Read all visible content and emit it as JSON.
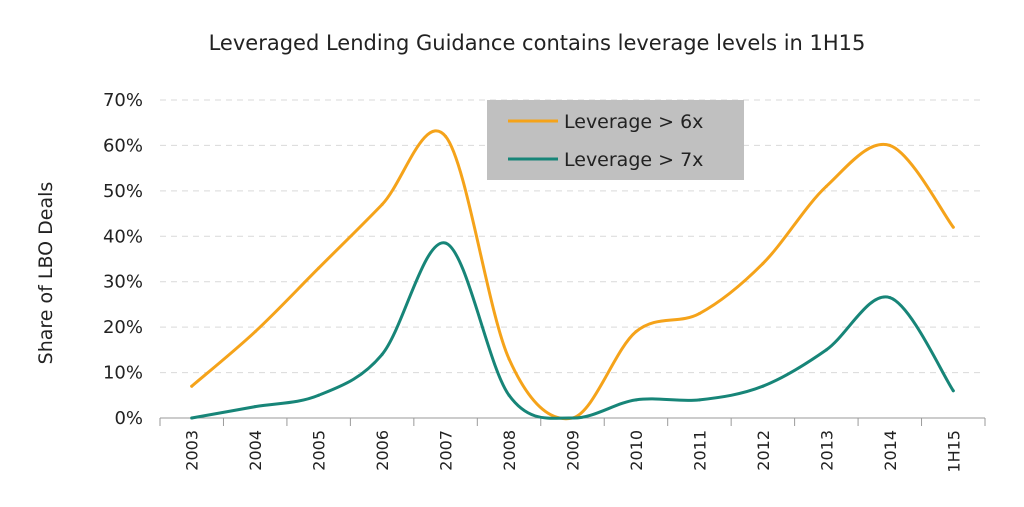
{
  "chart_data": {
    "type": "line",
    "title": "Leveraged Lending Guidance contains leverage levels in 1H15",
    "ylabel": "Share of LBO Deals",
    "xlabel": "",
    "categories": [
      "2003",
      "2004",
      "2005",
      "2006",
      "2007",
      "2008",
      "2009",
      "2010",
      "2011",
      "2012",
      "2013",
      "2014",
      "1H15"
    ],
    "y_tick_labels": [
      "0%",
      "10%",
      "20%",
      "30%",
      "40%",
      "50%",
      "60%",
      "70%"
    ],
    "ylim": [
      0,
      70
    ],
    "y_unit": "%",
    "grid": true,
    "legend_position": "top-center",
    "series": [
      {
        "name": "Leverage > 6x",
        "color": "#f5a31a",
        "values": [
          7,
          19,
          33,
          47,
          62,
          13,
          0,
          19,
          23,
          34,
          51,
          60,
          42
        ]
      },
      {
        "name": "Leverage > 7x",
        "color": "#178578",
        "values": [
          0,
          2.5,
          5,
          14,
          38.5,
          5,
          0,
          4,
          4,
          7,
          15,
          26.5,
          6
        ]
      }
    ],
    "legend_background": "#c0c0c0"
  }
}
